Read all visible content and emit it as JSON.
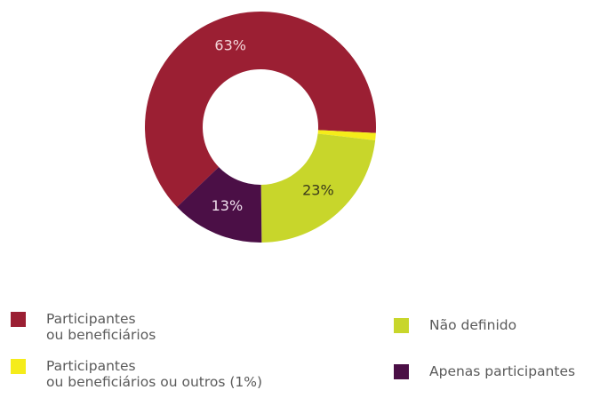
{
  "chart_data": {
    "type": "donut",
    "categories": [
      "Participantes\nou beneficiários",
      "Participantes\nou beneficiários ou outros (1%)",
      "Não definido",
      "Apenas participantes"
    ],
    "values": [
      63,
      1,
      23,
      13
    ],
    "value_labels": [
      "63%",
      null,
      "23%",
      "13%"
    ],
    "colors": [
      "#9b1f33",
      "#f5ec1a",
      "#c8d62b",
      "#4b0f46"
    ]
  }
}
